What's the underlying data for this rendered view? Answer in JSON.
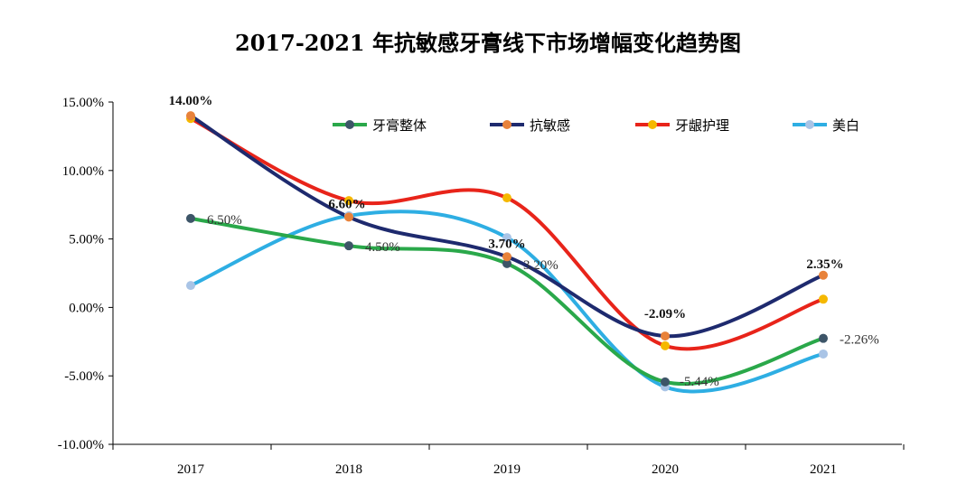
{
  "chart_data": {
    "type": "line",
    "title": "2017-2021 年抗敏感牙膏线下市场增幅变化趋势图",
    "categories": [
      "2017",
      "2018",
      "2019",
      "2020",
      "2021"
    ],
    "ylim": [
      -10,
      15
    ],
    "yticks": [
      15,
      10,
      5,
      0,
      -5,
      -10
    ],
    "ytick_labels": [
      "15.00%",
      "10.00%",
      "5.00%",
      "0.00%",
      "-5.00%",
      "-10.00%"
    ],
    "xlabel": "",
    "ylabel": "",
    "legend_position": "top-right",
    "series": [
      {
        "name": "牙膏整体",
        "color": "#2aa84a",
        "marker": "#3d5568",
        "values": [
          6.5,
          4.5,
          3.2,
          -5.44,
          -2.26
        ],
        "labels": [
          "6.50%",
          "4.50%",
          "3.20%",
          "-5.44%",
          "-2.26%"
        ]
      },
      {
        "name": "抗敏感",
        "color": "#1e2a6e",
        "marker": "#e8823a",
        "values": [
          14.0,
          6.6,
          3.7,
          -2.09,
          2.35
        ],
        "labels": [
          "14.00%",
          "6.60%",
          "3.70%",
          "-2.09%",
          "2.35%"
        ]
      },
      {
        "name": "牙龈护理",
        "color": "#e8241a",
        "marker": "#f5b800",
        "values": [
          13.8,
          7.8,
          8.0,
          -2.8,
          0.6
        ],
        "labels": []
      },
      {
        "name": "美白",
        "color": "#2eaee3",
        "marker": "#a9c4e6",
        "values": [
          1.6,
          6.7,
          5.1,
          -5.8,
          -3.4
        ],
        "labels": []
      }
    ]
  }
}
